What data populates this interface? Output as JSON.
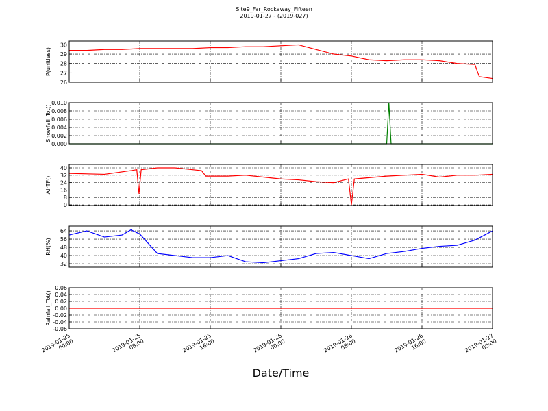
{
  "title": "Site9_Far_Rockaway_Fifteen",
  "subtitle": "2019-01-27 - (2019-027)",
  "xlabel": "Date/Time",
  "xlim": [
    "2019-01-25 00:00",
    "2019-01-27 00:00"
  ],
  "xticks": [
    {
      "value": "2019-01-25 00:00",
      "label": "2019-01-25\n00:00"
    },
    {
      "value": "2019-01-25 08:00",
      "label": "2019-01-25\n08:00"
    },
    {
      "value": "2019-01-25 16:00",
      "label": "2019-01-25\n16:00"
    },
    {
      "value": "2019-01-26 00:00",
      "label": "2019-01-26\n00:00"
    },
    {
      "value": "2019-01-26 08:00",
      "label": "2019-01-26\n08:00"
    },
    {
      "value": "2019-01-26 16:00",
      "label": "2019-01-26\n16:00"
    },
    {
      "value": "2019-01-27 00:00",
      "label": "2019-01-27\n00:00"
    }
  ],
  "chart_data": [
    {
      "type": "line",
      "ylabel": "P(unitless)",
      "color": "#ff0000",
      "grid": true,
      "ylim": [
        26,
        30.4
      ],
      "yticks": [
        26,
        27,
        28,
        29,
        30
      ],
      "x": [
        "2019-01-25 00:00",
        "2019-01-25 02:00",
        "2019-01-25 04:00",
        "2019-01-25 06:00",
        "2019-01-25 08:00",
        "2019-01-25 10:00",
        "2019-01-25 12:00",
        "2019-01-25 14:00",
        "2019-01-25 16:00",
        "2019-01-25 18:00",
        "2019-01-25 20:00",
        "2019-01-25 22:00",
        "2019-01-26 00:00",
        "2019-01-26 02:00",
        "2019-01-26 04:00",
        "2019-01-26 06:00",
        "2019-01-26 08:00",
        "2019-01-26 10:00",
        "2019-01-26 12:00",
        "2019-01-26 14:00",
        "2019-01-26 16:00",
        "2019-01-26 18:00",
        "2019-01-26 20:00",
        "2019-01-26 22:00",
        "2019-01-26 22:30",
        "2019-01-27 00:00"
      ],
      "values": [
        29.4,
        29.4,
        29.5,
        29.5,
        29.6,
        29.6,
        29.6,
        29.6,
        29.7,
        29.7,
        29.8,
        29.8,
        29.9,
        30.0,
        29.5,
        29.0,
        28.8,
        28.4,
        28.3,
        28.4,
        28.4,
        28.3,
        28.0,
        27.9,
        26.6,
        26.4
      ]
    },
    {
      "type": "line",
      "ylabel": "Snowfall_Tot()",
      "color": "#007f00",
      "grid": true,
      "ylim": [
        0,
        0.01
      ],
      "yticks": [
        {
          "value": 0,
          "label": "0.000"
        },
        {
          "value": 0.002,
          "label": "0.002"
        },
        {
          "value": 0.004,
          "label": "0.004"
        },
        {
          "value": 0.006,
          "label": "0.006"
        },
        {
          "value": 0.008,
          "label": "0.008"
        },
        {
          "value": 0.01,
          "label": "0.010"
        }
      ],
      "x": [
        "2019-01-25 00:00",
        "2019-01-26 12:00",
        "2019-01-26 12:15",
        "2019-01-26 12:30",
        "2019-01-27 00:00"
      ],
      "values": [
        0,
        0,
        0.01,
        0,
        0
      ]
    },
    {
      "type": "line",
      "ylabel": "AirTF()",
      "color": "#ff0000",
      "grid": true,
      "ylim": [
        -0.7,
        43.7
      ],
      "yticks": [
        0,
        8,
        16,
        24,
        32,
        40
      ],
      "x": [
        "2019-01-25 00:00",
        "2019-01-25 04:00",
        "2019-01-25 07:00",
        "2019-01-25 07:40",
        "2019-01-25 07:55",
        "2019-01-25 08:10",
        "2019-01-25 10:00",
        "2019-01-25 12:00",
        "2019-01-25 14:00",
        "2019-01-25 15:00",
        "2019-01-25 15:30",
        "2019-01-25 18:00",
        "2019-01-25 20:00",
        "2019-01-25 22:00",
        "2019-01-26 00:00",
        "2019-01-26 02:00",
        "2019-01-26 04:00",
        "2019-01-26 06:00",
        "2019-01-26 07:40",
        "2019-01-26 08:00",
        "2019-01-26 08:20",
        "2019-01-26 12:00",
        "2019-01-26 14:00",
        "2019-01-26 16:00",
        "2019-01-26 18:00",
        "2019-01-26 20:00",
        "2019-01-26 22:00",
        "2019-01-27 00:00"
      ],
      "values": [
        34,
        33,
        37,
        38,
        12,
        38,
        40,
        40,
        38,
        37,
        31,
        31,
        32,
        30,
        28,
        27,
        25,
        24,
        28,
        0,
        28,
        31,
        32,
        33,
        30,
        32,
        32,
        33
      ]
    },
    {
      "type": "line",
      "ylabel": "RH(%)",
      "color": "#0000ff",
      "grid": true,
      "ylim": [
        28.7,
        68.7
      ],
      "yticks": [
        32,
        40,
        48,
        56,
        64
      ],
      "x": [
        "2019-01-25 00:00",
        "2019-01-25 02:00",
        "2019-01-25 04:00",
        "2019-01-25 06:00",
        "2019-01-25 07:00",
        "2019-01-25 08:00",
        "2019-01-25 10:00",
        "2019-01-25 12:00",
        "2019-01-25 14:00",
        "2019-01-25 16:00",
        "2019-01-25 18:00",
        "2019-01-25 20:00",
        "2019-01-25 22:00",
        "2019-01-26 00:00",
        "2019-01-26 02:00",
        "2019-01-26 04:00",
        "2019-01-26 06:00",
        "2019-01-26 08:00",
        "2019-01-26 10:00",
        "2019-01-26 12:00",
        "2019-01-26 14:00",
        "2019-01-26 16:00",
        "2019-01-26 18:00",
        "2019-01-26 20:00",
        "2019-01-26 22:00",
        "2019-01-27 00:00"
      ],
      "values": [
        60,
        64,
        58,
        60,
        65,
        61,
        42,
        40,
        38,
        38,
        40,
        34,
        33,
        35,
        37,
        42,
        43,
        40,
        37,
        42,
        44,
        47,
        49,
        50,
        55,
        64
      ]
    },
    {
      "type": "line",
      "ylabel": "Rainfall_Tot()",
      "color": "#ff0000",
      "grid": true,
      "ylim": [
        -0.06,
        0.06
      ],
      "yticks": [
        {
          "value": -0.06,
          "label": "-0.06"
        },
        {
          "value": -0.04,
          "label": "-0.04"
        },
        {
          "value": -0.02,
          "label": "-0.02"
        },
        {
          "value": 0,
          "label": "0.00"
        },
        {
          "value": 0.02,
          "label": "0.02"
        },
        {
          "value": 0.04,
          "label": "0.04"
        },
        {
          "value": 0.06,
          "label": "0.06"
        }
      ],
      "x": [
        "2019-01-25 00:00",
        "2019-01-27 00:00"
      ],
      "values": [
        0,
        0
      ]
    }
  ]
}
